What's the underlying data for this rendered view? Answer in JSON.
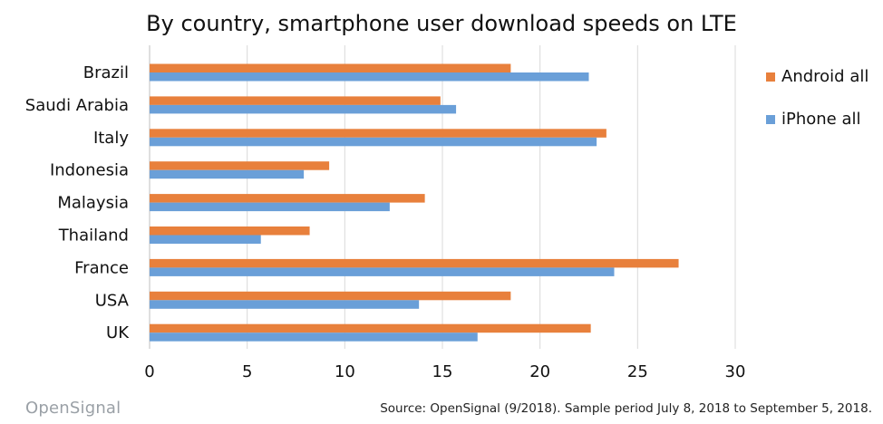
{
  "chart_data": {
    "type": "bar",
    "orientation": "horizontal",
    "title": "By country, smartphone user download speeds on LTE",
    "categories": [
      "Brazil",
      "Saudi Arabia",
      "Italy",
      "Indonesia",
      "Malaysia",
      "Thailand",
      "France",
      "USA",
      "UK"
    ],
    "series": [
      {
        "name": "Android all",
        "color": "#E8803C",
        "values": [
          18.5,
          14.9,
          23.4,
          9.2,
          14.1,
          8.2,
          27.1,
          18.5,
          22.6
        ]
      },
      {
        "name": "iPhone all",
        "color": "#6A9FD8",
        "values": [
          22.5,
          15.7,
          22.9,
          7.9,
          12.3,
          5.7,
          23.8,
          13.8,
          16.8
        ]
      }
    ],
    "xlim": [
      0,
      30
    ],
    "xticks": [
      "0",
      "5",
      "10",
      "15",
      "20",
      "25",
      "30"
    ],
    "grid": true,
    "legend_position": "right"
  },
  "footer": {
    "brand": "OpenSignal",
    "source": "Source: OpenSignal (9/2018). Sample period July 8, 2018 to September 5, 2018."
  },
  "colors": {
    "gridline": "#d9d9d9",
    "brand_text": "#9aa0a6"
  }
}
